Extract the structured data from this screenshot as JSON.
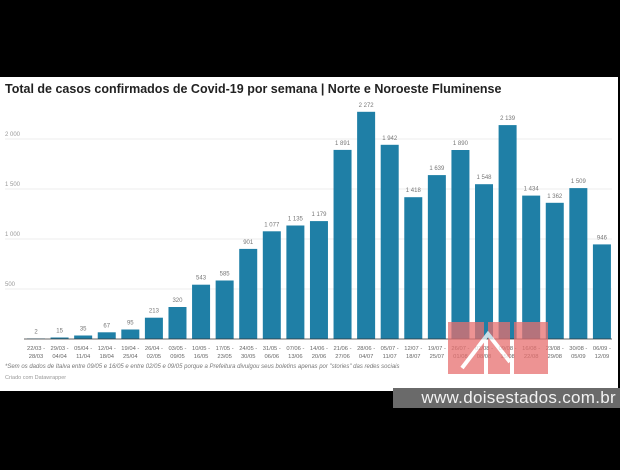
{
  "chart_data": {
    "type": "bar",
    "title": "Total de casos confirmados de Covid-19 por semana | Norte e Noroeste Fluminense",
    "xlabel": "",
    "ylabel": "",
    "ylim": [
      0,
      2400
    ],
    "yticks": [
      500,
      1000,
      1500,
      2000
    ],
    "ytick_labels": [
      "500",
      "1 000",
      "1 500",
      "2 000"
    ],
    "grid": true,
    "bar_color": "#1f7fa6",
    "categories": [
      [
        "22/03 -",
        "28/03"
      ],
      [
        "29/03 -",
        "04/04"
      ],
      [
        "05/04 -",
        "11/04"
      ],
      [
        "12/04 -",
        "18/04"
      ],
      [
        "19/04 -",
        "25/04"
      ],
      [
        "26/04 -",
        "02/05"
      ],
      [
        "03/05 -",
        "09/05"
      ],
      [
        "10/05 -",
        "16/05"
      ],
      [
        "17/05 -",
        "23/05"
      ],
      [
        "24/05 -",
        "30/05"
      ],
      [
        "31/05 -",
        "06/06"
      ],
      [
        "07/06 -",
        "13/06"
      ],
      [
        "14/06 -",
        "20/06"
      ],
      [
        "21/06 -",
        "27/06"
      ],
      [
        "28/06 -",
        "04/07"
      ],
      [
        "05/07 -",
        "11/07"
      ],
      [
        "12/07 -",
        "18/07"
      ],
      [
        "19/07 -",
        "25/07"
      ],
      [
        "26/07 -",
        "01/08"
      ],
      [
        "02/08 -",
        "08/08"
      ],
      [
        "09/08 -",
        "15/08"
      ],
      [
        "16/08 -",
        "22/08"
      ],
      [
        "23/08 -",
        "29/08"
      ],
      [
        "30/08 -",
        "05/09"
      ],
      [
        "06/09 -",
        "12/09"
      ]
    ],
    "values": [
      2,
      15,
      35,
      67,
      95,
      213,
      320,
      543,
      585,
      901,
      1077,
      1135,
      1179,
      1891,
      2272,
      1942,
      1418,
      1639,
      1890,
      1548,
      2139,
      1434,
      1362,
      1509,
      946
    ],
    "value_labels": [
      "2",
      "15",
      "35",
      "67",
      "95",
      "213",
      "320",
      "543",
      "585",
      "901",
      "1 077",
      "1 135",
      "1 179",
      "1 891",
      "2 272",
      "1 942",
      "1 418",
      "1 639",
      "1 890",
      "1 548",
      "2 139",
      "1 434",
      "1 362",
      "1 509",
      "946"
    ]
  },
  "footnote": "*Sem os dados de Italva entre 09/05 e 16/05 e entre 02/05 e 09/05 porque a Prefeitura divulgou seus boletins apenas por \"stories\" das redes sociais",
  "credit": "Criado com Datawrapper",
  "watermark": "www.doisestados.com.br"
}
